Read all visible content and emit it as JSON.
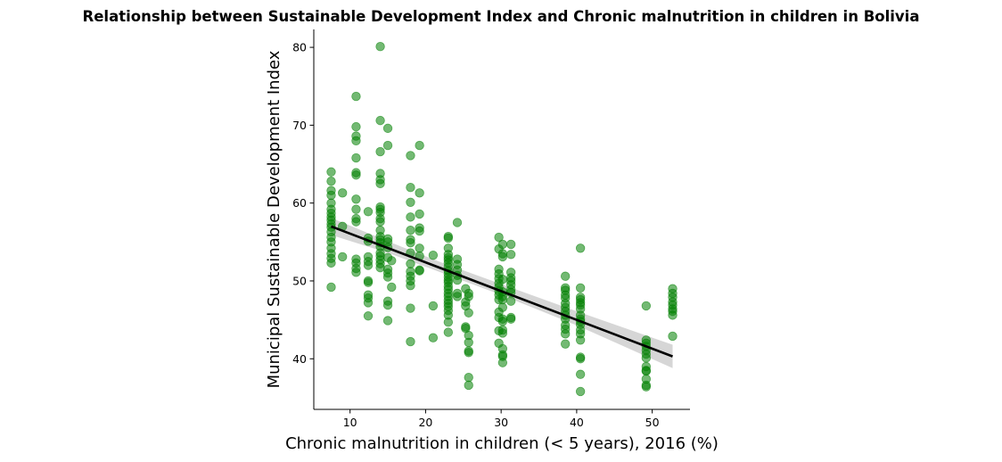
{
  "chart_data": {
    "type": "scatter",
    "title": "Relationship between Sustainable Development Index and Chronic malnutrition in children in Bolivia",
    "xlabel": "Chronic malnutrition in children (< 5 years), 2016 (%)",
    "ylabel": "Municipal Sustainable Development Index",
    "xlim": [
      5.2,
      55.0
    ],
    "ylim": [
      33.5,
      82.3
    ],
    "xticks": [
      10,
      20,
      30,
      40,
      50
    ],
    "yticks": [
      40,
      50,
      60,
      70,
      80
    ],
    "grid": false,
    "legend": "none",
    "colors": {
      "points": "#008000",
      "regression_line": "#000000",
      "confidence_band": "#c8c8c8"
    },
    "regression_line": {
      "x": [
        7.5,
        52.7
      ],
      "y": [
        57.0,
        40.3
      ]
    },
    "confidence_band": {
      "x": [
        7.5,
        15.0,
        22.0,
        30.0,
        40.0,
        52.7
      ],
      "upper": [
        58.1,
        55.1,
        52.4,
        49.6,
        46.1,
        41.8
      ],
      "lower": [
        55.9,
        53.6,
        51.1,
        48.2,
        44.3,
        38.8
      ]
    },
    "points": [
      [
        7.5,
        64.0
      ],
      [
        7.5,
        62.8
      ],
      [
        7.5,
        61.6
      ],
      [
        7.5,
        61.0
      ],
      [
        7.5,
        60.0
      ],
      [
        7.5,
        59.2
      ],
      [
        7.5,
        58.7
      ],
      [
        7.5,
        58.2
      ],
      [
        7.5,
        57.8
      ],
      [
        7.5,
        57.3
      ],
      [
        7.5,
        56.9
      ],
      [
        7.5,
        56.3
      ],
      [
        7.5,
        55.6
      ],
      [
        7.5,
        55.0
      ],
      [
        7.5,
        54.2
      ],
      [
        7.5,
        53.5
      ],
      [
        7.5,
        52.9
      ],
      [
        7.5,
        52.3
      ],
      [
        7.5,
        49.2
      ],
      [
        9.0,
        61.3
      ],
      [
        9.0,
        57.0
      ],
      [
        9.0,
        53.1
      ],
      [
        10.8,
        73.7
      ],
      [
        10.8,
        69.8
      ],
      [
        10.8,
        68.6
      ],
      [
        10.8,
        68.0
      ],
      [
        10.8,
        65.8
      ],
      [
        10.8,
        63.9
      ],
      [
        10.8,
        63.6
      ],
      [
        10.8,
        60.5
      ],
      [
        10.8,
        59.2
      ],
      [
        10.8,
        58.0
      ],
      [
        10.8,
        57.6
      ],
      [
        10.8,
        52.8
      ],
      [
        10.8,
        52.3
      ],
      [
        10.8,
        51.6
      ],
      [
        10.8,
        51.1
      ],
      [
        12.4,
        58.9
      ],
      [
        12.4,
        55.5
      ],
      [
        12.4,
        55.1
      ],
      [
        12.4,
        53.1
      ],
      [
        12.4,
        52.5
      ],
      [
        12.4,
        52.0
      ],
      [
        12.4,
        50.0
      ],
      [
        12.4,
        49.8
      ],
      [
        12.4,
        48.2
      ],
      [
        12.4,
        47.8
      ],
      [
        12.4,
        47.2
      ],
      [
        12.4,
        45.5
      ],
      [
        14.0,
        80.1
      ],
      [
        14.0,
        70.6
      ],
      [
        14.0,
        66.6
      ],
      [
        14.0,
        63.8
      ],
      [
        14.0,
        63.0
      ],
      [
        14.0,
        62.5
      ],
      [
        14.0,
        59.5
      ],
      [
        14.0,
        59.2
      ],
      [
        14.0,
        58.8
      ],
      [
        14.0,
        58.0
      ],
      [
        14.0,
        57.6
      ],
      [
        14.0,
        56.5
      ],
      [
        14.0,
        55.7
      ],
      [
        14.0,
        55.3
      ],
      [
        14.0,
        54.9
      ],
      [
        14.0,
        54.4
      ],
      [
        14.0,
        53.6
      ],
      [
        14.0,
        53.2
      ],
      [
        14.0,
        52.7
      ],
      [
        14.0,
        52.2
      ],
      [
        14.0,
        51.7
      ],
      [
        15.0,
        69.6
      ],
      [
        15.0,
        67.4
      ],
      [
        15.0,
        55.4
      ],
      [
        15.0,
        55.0
      ],
      [
        15.0,
        54.3
      ],
      [
        15.0,
        53.0
      ],
      [
        15.0,
        51.5
      ],
      [
        15.0,
        51.0
      ],
      [
        15.0,
        50.5
      ],
      [
        15.0,
        47.4
      ],
      [
        15.0,
        46.9
      ],
      [
        15.0,
        44.9
      ],
      [
        15.5,
        52.6
      ],
      [
        15.5,
        49.2
      ],
      [
        18.0,
        66.1
      ],
      [
        18.0,
        62.0
      ],
      [
        18.0,
        60.1
      ],
      [
        18.0,
        58.2
      ],
      [
        18.0,
        56.5
      ],
      [
        18.0,
        55.3
      ],
      [
        18.0,
        54.9
      ],
      [
        18.0,
        53.6
      ],
      [
        18.0,
        52.2
      ],
      [
        18.0,
        51.2
      ],
      [
        18.0,
        50.6
      ],
      [
        18.0,
        50.0
      ],
      [
        18.0,
        49.4
      ],
      [
        18.0,
        46.5
      ],
      [
        18.0,
        42.2
      ],
      [
        19.2,
        67.4
      ],
      [
        19.2,
        61.3
      ],
      [
        19.2,
        58.6
      ],
      [
        19.2,
        56.8
      ],
      [
        19.2,
        56.4
      ],
      [
        19.2,
        54.2
      ],
      [
        19.2,
        53.2
      ],
      [
        19.2,
        51.4
      ],
      [
        19.2,
        51.3
      ],
      [
        21.0,
        53.3
      ],
      [
        21.0,
        46.8
      ],
      [
        21.0,
        42.7
      ],
      [
        23.0,
        55.7
      ],
      [
        23.0,
        55.5
      ],
      [
        23.0,
        54.2
      ],
      [
        23.0,
        53.4
      ],
      [
        23.0,
        53.0
      ],
      [
        23.0,
        52.7
      ],
      [
        23.0,
        52.3
      ],
      [
        23.0,
        51.8
      ],
      [
        23.0,
        51.3
      ],
      [
        23.0,
        50.9
      ],
      [
        23.0,
        50.5
      ],
      [
        23.0,
        50.1
      ],
      [
        23.0,
        49.8
      ],
      [
        23.0,
        49.3
      ],
      [
        23.0,
        48.9
      ],
      [
        23.0,
        48.4
      ],
      [
        23.0,
        48.0
      ],
      [
        23.0,
        47.5
      ],
      [
        23.0,
        47.1
      ],
      [
        23.0,
        46.7
      ],
      [
        23.0,
        46.2
      ],
      [
        23.0,
        45.6
      ],
      [
        23.0,
        44.7
      ],
      [
        23.0,
        43.4
      ],
      [
        24.2,
        57.5
      ],
      [
        24.2,
        52.8
      ],
      [
        24.2,
        52.1
      ],
      [
        24.2,
        51.4
      ],
      [
        24.2,
        50.7
      ],
      [
        24.2,
        50.1
      ],
      [
        24.2,
        48.4
      ],
      [
        24.2,
        48.0
      ],
      [
        25.3,
        49.0
      ],
      [
        25.3,
        47.3
      ],
      [
        25.3,
        46.8
      ],
      [
        25.3,
        44.1
      ],
      [
        25.3,
        43.9
      ],
      [
        25.7,
        48.4
      ],
      [
        25.7,
        48.0
      ],
      [
        25.7,
        45.9
      ],
      [
        25.7,
        43.0
      ],
      [
        25.7,
        42.1
      ],
      [
        25.7,
        41.0
      ],
      [
        25.7,
        40.8
      ],
      [
        25.7,
        37.6
      ],
      [
        25.7,
        36.6
      ],
      [
        29.7,
        55.6
      ],
      [
        29.7,
        54.1
      ],
      [
        29.7,
        51.5
      ],
      [
        29.7,
        50.9
      ],
      [
        29.7,
        50.3
      ],
      [
        29.7,
        49.7
      ],
      [
        29.7,
        49.2
      ],
      [
        29.7,
        48.7
      ],
      [
        29.7,
        48.2
      ],
      [
        29.7,
        47.6
      ],
      [
        29.7,
        46.0
      ],
      [
        29.7,
        45.3
      ],
      [
        29.7,
        43.6
      ],
      [
        29.7,
        42.0
      ],
      [
        30.2,
        54.7
      ],
      [
        30.2,
        53.5
      ],
      [
        30.2,
        53.1
      ],
      [
        30.2,
        50.2
      ],
      [
        30.2,
        48.6
      ],
      [
        30.2,
        48.0
      ],
      [
        30.2,
        47.6
      ],
      [
        30.2,
        46.6
      ],
      [
        30.2,
        45.1
      ],
      [
        30.2,
        44.8
      ],
      [
        30.2,
        43.7
      ],
      [
        30.2,
        43.3
      ],
      [
        30.2,
        41.3
      ],
      [
        30.2,
        40.5
      ],
      [
        30.2,
        40.3
      ],
      [
        30.2,
        39.5
      ],
      [
        31.3,
        54.7
      ],
      [
        31.3,
        53.4
      ],
      [
        31.3,
        51.1
      ],
      [
        31.3,
        50.4
      ],
      [
        31.3,
        50.0
      ],
      [
        31.3,
        49.5
      ],
      [
        31.3,
        48.9
      ],
      [
        31.3,
        48.5
      ],
      [
        31.3,
        47.4
      ],
      [
        31.3,
        45.3
      ],
      [
        31.3,
        45.1
      ],
      [
        38.5,
        50.6
      ],
      [
        38.5,
        49.1
      ],
      [
        38.5,
        48.8
      ],
      [
        38.5,
        48.2
      ],
      [
        38.5,
        47.8
      ],
      [
        38.5,
        47.1
      ],
      [
        38.5,
        46.6
      ],
      [
        38.5,
        46.1
      ],
      [
        38.5,
        45.6
      ],
      [
        38.5,
        45.1
      ],
      [
        38.5,
        44.3
      ],
      [
        38.5,
        43.8
      ],
      [
        38.5,
        43.2
      ],
      [
        38.5,
        41.9
      ],
      [
        40.5,
        54.2
      ],
      [
        40.5,
        49.1
      ],
      [
        40.5,
        47.9
      ],
      [
        40.5,
        47.6
      ],
      [
        40.5,
        47.2
      ],
      [
        40.5,
        46.9
      ],
      [
        40.5,
        46.4
      ],
      [
        40.5,
        45.6
      ],
      [
        40.5,
        45.1
      ],
      [
        40.5,
        44.8
      ],
      [
        40.5,
        44.4
      ],
      [
        40.5,
        43.7
      ],
      [
        40.5,
        43.2
      ],
      [
        40.5,
        42.4
      ],
      [
        40.5,
        40.2
      ],
      [
        40.5,
        40.0
      ],
      [
        40.5,
        38.0
      ],
      [
        40.5,
        35.8
      ],
      [
        49.2,
        46.8
      ],
      [
        49.2,
        42.4
      ],
      [
        49.2,
        42.0
      ],
      [
        49.2,
        41.6
      ],
      [
        49.2,
        41.1
      ],
      [
        49.2,
        40.6
      ],
      [
        49.2,
        40.1
      ],
      [
        49.2,
        39.0
      ],
      [
        49.2,
        38.5
      ],
      [
        49.2,
        38.4
      ],
      [
        49.2,
        37.4
      ],
      [
        49.2,
        36.6
      ],
      [
        49.2,
        36.4
      ],
      [
        52.7,
        49.0
      ],
      [
        52.7,
        48.4
      ],
      [
        52.7,
        47.9
      ],
      [
        52.7,
        47.3
      ],
      [
        52.7,
        46.9
      ],
      [
        52.7,
        46.4
      ],
      [
        52.7,
        46.1
      ],
      [
        52.7,
        45.6
      ],
      [
        52.7,
        42.9
      ]
    ]
  }
}
